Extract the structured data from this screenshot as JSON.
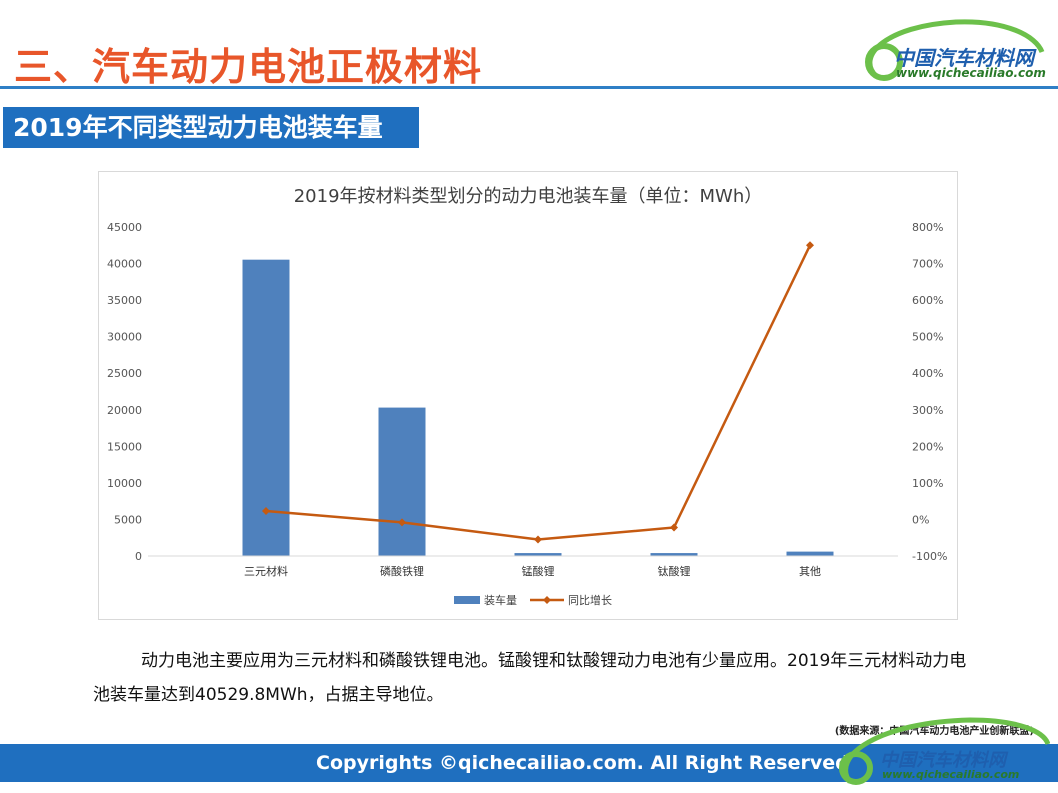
{
  "header": {
    "title": "三、汽车动力电池正极材料",
    "logo_cn": "中国汽车材料网",
    "logo_url": "www.qichecailiao.com"
  },
  "section": {
    "label": "2019年不同类型动力电池装车量"
  },
  "colors": {
    "bar": "#4f81bd",
    "line": "#c55a11",
    "accent": "#1f6fbf",
    "title_orange": "#e8562a"
  },
  "chart_data": {
    "type": "bar",
    "title": "2019年按材料类型划分的动力电池装车量（单位：MWh）",
    "categories": [
      "三元材料",
      "磷酸铁锂",
      "锰酸锂",
      "钛酸锂",
      "其他"
    ],
    "series": [
      {
        "name": "装车量",
        "type": "bar",
        "axis": "left",
        "values": [
          40529.8,
          20300,
          400,
          400,
          600
        ]
      },
      {
        "name": "同比增长",
        "type": "line",
        "axis": "right",
        "values": [
          0.23,
          -0.08,
          -0.55,
          -0.22,
          7.5
        ]
      }
    ],
    "y_left": {
      "min": 0,
      "max": 45000,
      "ticks": [
        "0",
        "5000",
        "10000",
        "15000",
        "20000",
        "25000",
        "30000",
        "35000",
        "40000",
        "45000"
      ]
    },
    "y_right": {
      "min": -1.0,
      "max": 8.0,
      "ticks": [
        "-100%",
        "0%",
        "100%",
        "200%",
        "300%",
        "400%",
        "500%",
        "600%",
        "700%",
        "800%"
      ]
    },
    "legend_position": "bottom",
    "grid": false
  },
  "body_text": "动力电池主要应用为三元材料和磷酸铁锂电池。锰酸锂和钛酸锂动力电池有少量应用。2019年三元材料动力电池装车量达到40529.8MWh，占据主导地位。",
  "source_note": "(数据来源：中国汽车动力电池产业创新联盟)",
  "footer": {
    "copyright": "Copyrights ©qichecailiao.com. All Right Reserved",
    "logo_cn": "中国汽车材料网",
    "logo_url": "www.qichecailiao.com"
  }
}
